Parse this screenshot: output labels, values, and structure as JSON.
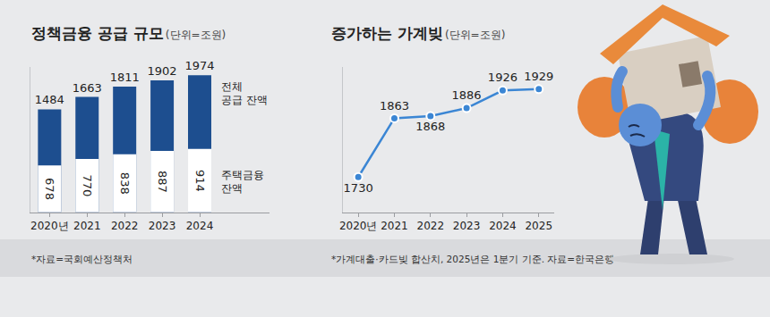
{
  "chart_data": [
    {
      "type": "bar",
      "title": "정책금융 공급 규모",
      "subtitle": "(단위=조원)",
      "categories": [
        "2020년",
        "2021",
        "2022",
        "2023",
        "2024"
      ],
      "series": [
        {
          "name": "전체 공급 잔액",
          "color": "#1d4e8f",
          "values": [
            1484,
            1663,
            1811,
            1902,
            1974
          ]
        },
        {
          "name": "주택금융 잔액",
          "color": "#ffffff",
          "values": [
            678,
            770,
            838,
            887,
            914
          ]
        }
      ],
      "stacked": false,
      "ylim": [
        0,
        2100
      ],
      "yticks": [],
      "tick_labels": "x",
      "grid": false,
      "data_labels": true,
      "legend": "right",
      "annotations": [
        "*자료=국회예산정책처"
      ]
    },
    {
      "type": "line",
      "title": "증가하는 가계빚",
      "subtitle": "(단위=조원)",
      "categories": [
        "2020년",
        "2021",
        "2022",
        "2023",
        "2024",
        "2025"
      ],
      "values": [
        1730,
        1863,
        1868,
        1886,
        1926,
        1929
      ],
      "color": "#3b86d4",
      "marker": "circle",
      "ylim": [
        1650,
        1980
      ],
      "yticks": [],
      "tick_labels": "x",
      "grid": false,
      "data_labels": true,
      "annotations": [
        "*가계대출·카드빚 합산치, 2025년은 1분기 기준. 자료=한국은행"
      ]
    }
  ]
}
